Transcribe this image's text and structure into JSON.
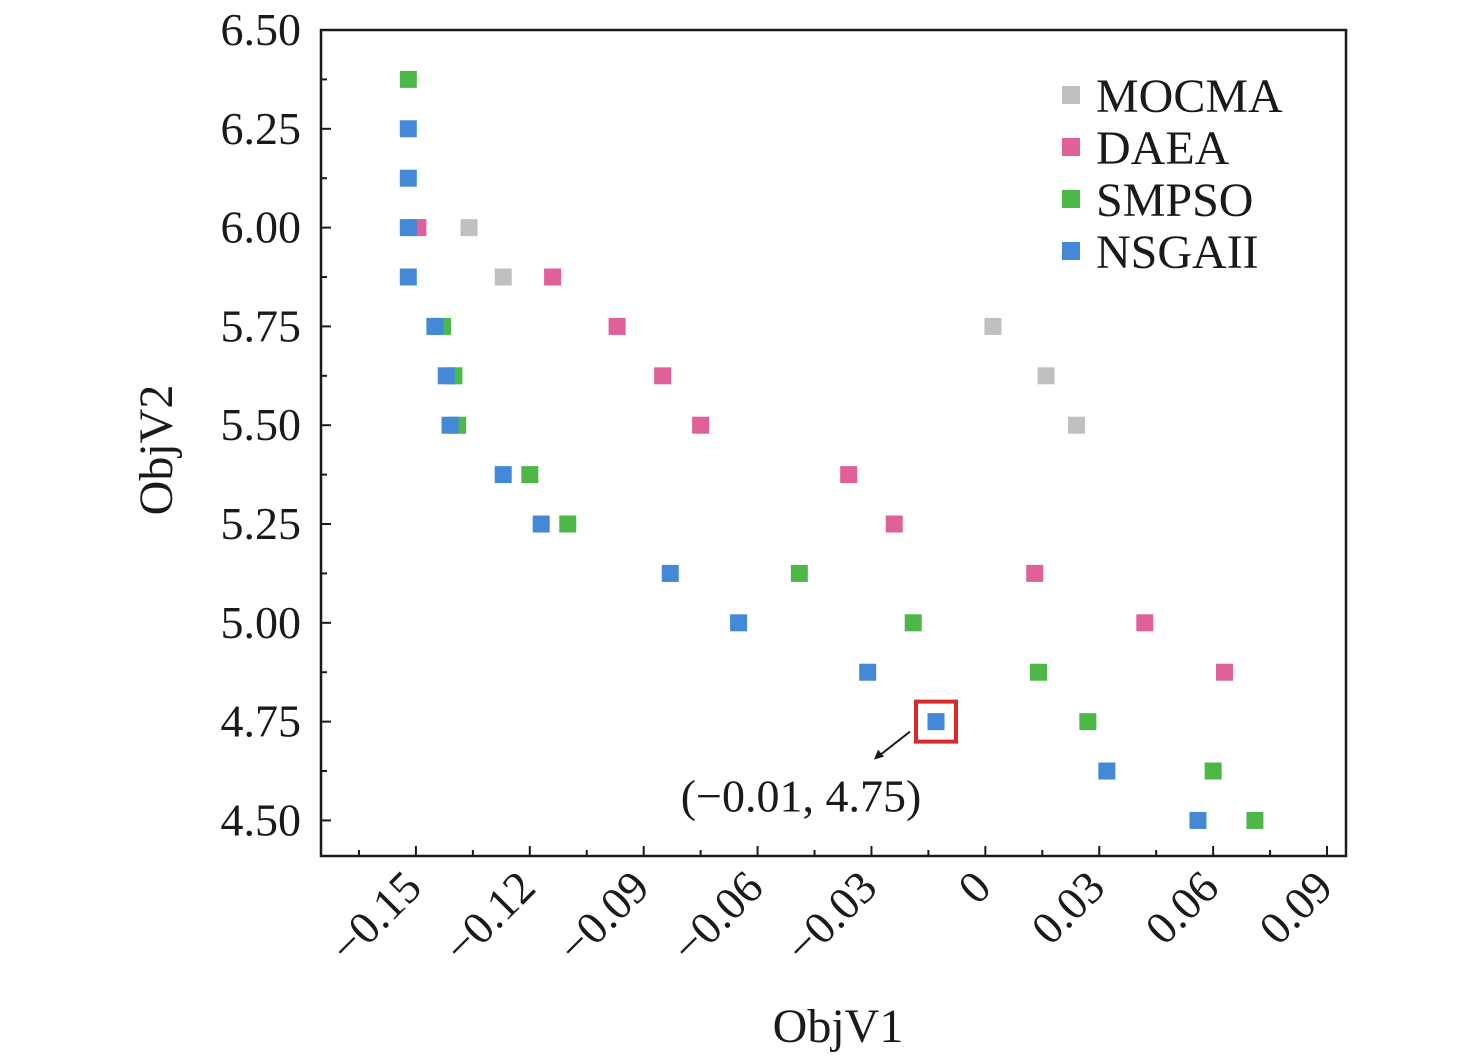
{
  "chart_data": {
    "type": "scatter",
    "xlabel": "ObjV1",
    "ylabel": "ObjV2",
    "xlim": [
      -0.175,
      0.095
    ],
    "ylim": [
      4.41,
      6.5
    ],
    "x_ticks": [
      -0.15,
      -0.12,
      -0.09,
      -0.06,
      -0.03,
      0,
      0.03,
      0.06,
      0.09
    ],
    "x_tick_labels": [
      "−0.15",
      "−0.12",
      "−0.09",
      "−0.06",
      "−0.03",
      "0",
      "0.03",
      "0.06",
      "0.09"
    ],
    "y_ticks": [
      4.5,
      4.75,
      5.0,
      5.25,
      5.5,
      5.75,
      6.0,
      6.25,
      6.5
    ],
    "y_tick_labels": [
      "4.50",
      "4.75",
      "5.00",
      "5.25",
      "5.50",
      "5.75",
      "6.00",
      "6.25",
      "6.50"
    ],
    "legend_position": "top-right",
    "grid": false,
    "series": [
      {
        "name": "MOCMA",
        "color": "#c0c0c0",
        "points": [
          {
            "x": -0.136,
            "y": 6.0
          },
          {
            "x": -0.127,
            "y": 5.875
          },
          {
            "x": 0.002,
            "y": 5.75
          },
          {
            "x": 0.016,
            "y": 5.625
          },
          {
            "x": 0.024,
            "y": 5.5
          }
        ]
      },
      {
        "name": "DAEA",
        "color": "#e0609a",
        "points": [
          {
            "x": -0.1495,
            "y": 6.0
          },
          {
            "x": -0.114,
            "y": 5.875
          },
          {
            "x": -0.097,
            "y": 5.75
          },
          {
            "x": -0.085,
            "y": 5.625
          },
          {
            "x": -0.075,
            "y": 5.5
          },
          {
            "x": -0.036,
            "y": 5.375
          },
          {
            "x": -0.024,
            "y": 5.25
          },
          {
            "x": 0.013,
            "y": 5.125
          },
          {
            "x": 0.042,
            "y": 5.0
          },
          {
            "x": 0.063,
            "y": 4.875
          }
        ]
      },
      {
        "name": "SMPSO",
        "color": "#4cb848",
        "points": [
          {
            "x": -0.152,
            "y": 6.375
          },
          {
            "x": -0.143,
            "y": 5.75
          },
          {
            "x": -0.14,
            "y": 5.625
          },
          {
            "x": -0.139,
            "y": 5.5
          },
          {
            "x": -0.12,
            "y": 5.375
          },
          {
            "x": -0.11,
            "y": 5.25
          },
          {
            "x": -0.049,
            "y": 5.125
          },
          {
            "x": -0.019,
            "y": 5.0
          },
          {
            "x": 0.014,
            "y": 4.875
          },
          {
            "x": 0.027,
            "y": 4.75
          },
          {
            "x": 0.06,
            "y": 4.625
          },
          {
            "x": 0.071,
            "y": 4.5
          }
        ]
      },
      {
        "name": "NSGAII",
        "color": "#4488d8",
        "points": [
          {
            "x": -0.152,
            "y": 6.25
          },
          {
            "x": -0.152,
            "y": 6.125
          },
          {
            "x": -0.152,
            "y": 6.0
          },
          {
            "x": -0.152,
            "y": 5.875
          },
          {
            "x": -0.145,
            "y": 5.75
          },
          {
            "x": -0.142,
            "y": 5.625
          },
          {
            "x": -0.141,
            "y": 5.5
          },
          {
            "x": -0.127,
            "y": 5.375
          },
          {
            "x": -0.117,
            "y": 5.25
          },
          {
            "x": -0.083,
            "y": 5.125
          },
          {
            "x": -0.065,
            "y": 5.0
          },
          {
            "x": -0.031,
            "y": 4.875
          },
          {
            "x": -0.013,
            "y": 4.75
          },
          {
            "x": 0.032,
            "y": 4.625
          },
          {
            "x": 0.056,
            "y": 4.5
          }
        ]
      }
    ],
    "annotation": {
      "text": "(−0.01, 4.75)",
      "x": -0.013,
      "y": 4.75,
      "box_color": "#d42a2a"
    }
  }
}
